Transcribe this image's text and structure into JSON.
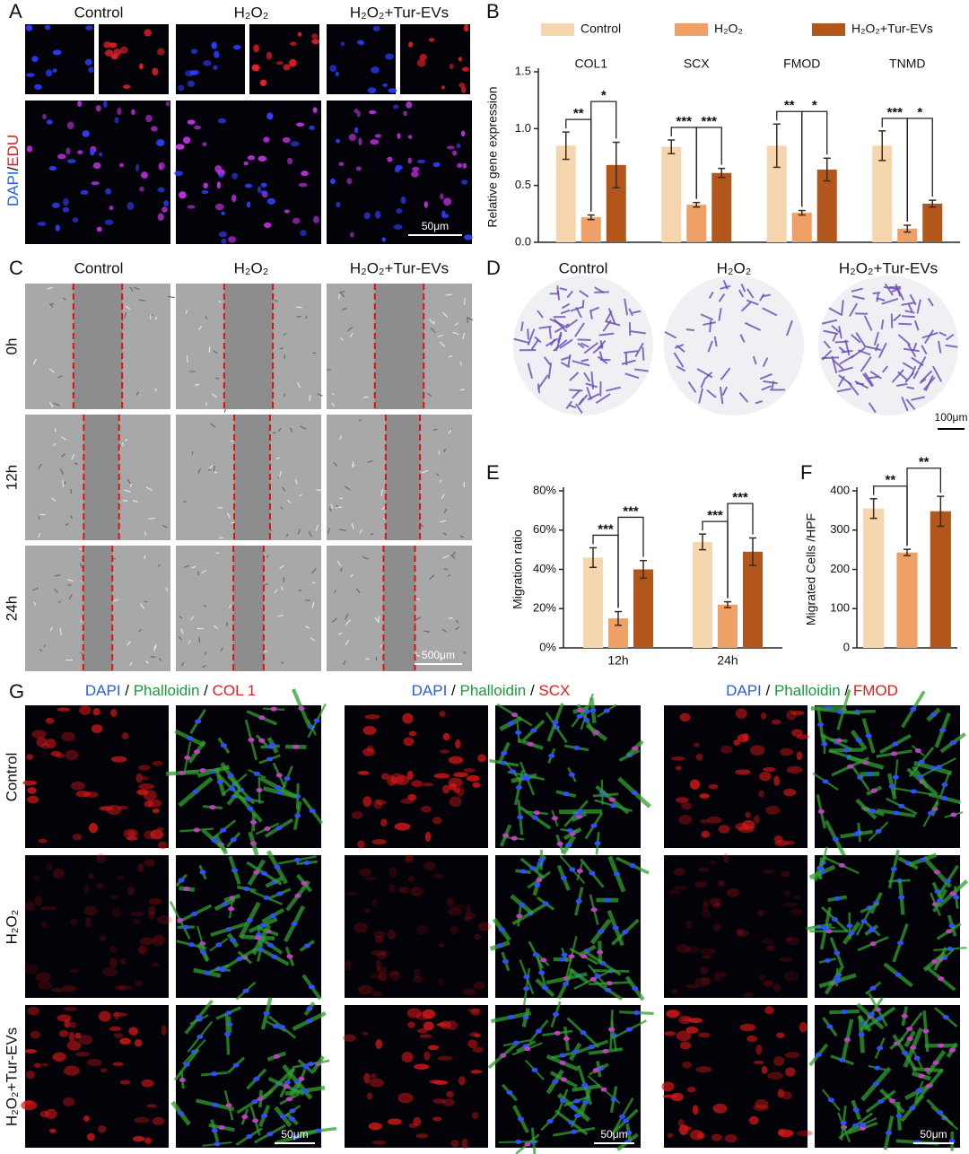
{
  "panel_letters": [
    "A",
    "B",
    "C",
    "D",
    "E",
    "F",
    "G"
  ],
  "panel_a": {
    "columns": [
      "Control",
      "H₂O₂",
      "H₂O₂+Tur-EVs"
    ],
    "stain": [
      "DAPI",
      "/",
      "EDU"
    ],
    "scale_bar": "50μm"
  },
  "panel_c": {
    "columns": [
      "Control",
      "H₂O₂",
      "H₂O₂+Tur-EVs"
    ],
    "rows": [
      "0h",
      "12h",
      "24h"
    ],
    "scale_bar": "500μm"
  },
  "panel_d": {
    "columns": [
      "Control",
      "H₂O₂",
      "H₂O₂+Tur-EVs"
    ],
    "scale_bar": "100μm"
  },
  "panel_g": {
    "headers": [
      [
        "DAPI",
        " / ",
        "Phalloidin",
        " / ",
        "COL 1"
      ],
      [
        "DAPI",
        " / ",
        "Phalloidin",
        " / ",
        "SCX"
      ],
      [
        "DAPI",
        " / ",
        "Phalloidin",
        " / ",
        "FMOD"
      ]
    ],
    "rows": [
      "Control",
      "H₂O₂",
      "H₂O₂+Tur-EVs"
    ],
    "scale_bars": [
      "50μm",
      "50μm",
      "50μm"
    ]
  },
  "chart_data": [
    {
      "type": "bar",
      "ylabel": "Relative gene expression",
      "categories": [
        "COL1",
        "SCX",
        "FMOD",
        "TNMD"
      ],
      "category_labels": "top",
      "legend": "top",
      "series": [
        {
          "name": "Control",
          "color": "#f6d6ae",
          "values": [
            0.85,
            0.84,
            0.85,
            0.85
          ],
          "errors": [
            0.12,
            0.06,
            0.19,
            0.13
          ]
        },
        {
          "name": "H₂O₂",
          "color": "#eea066",
          "values": [
            0.22,
            0.33,
            0.26,
            0.12
          ],
          "errors": [
            0.02,
            0.02,
            0.02,
            0.03
          ]
        },
        {
          "name": "H₂O₂+Tur-EVs",
          "color": "#b3561b",
          "values": [
            0.68,
            0.61,
            0.64,
            0.34
          ],
          "errors": [
            0.2,
            0.04,
            0.1,
            0.03
          ]
        }
      ],
      "significance": [
        [
          "**",
          "*"
        ],
        [
          "***",
          "***"
        ],
        [
          "**",
          "*"
        ],
        [
          "***",
          "*"
        ]
      ],
      "ylim": [
        0,
        1.5
      ],
      "yticks": [
        {
          "value": 0,
          "label": "0.0"
        },
        0.5,
        {
          "value": 1,
          "label": "1.0"
        },
        1.5
      ]
    },
    {
      "type": "bar",
      "ylabel": "Migration ratio",
      "categories": [
        "12h",
        "24h"
      ],
      "category_labels": "bottom",
      "series": [
        {
          "color": "#f6d6ae",
          "values": [
            46,
            54
          ],
          "errors": [
            5,
            4
          ]
        },
        {
          "color": "#eea066",
          "values": [
            15,
            22
          ],
          "errors": [
            3.5,
            1.5
          ]
        },
        {
          "color": "#b3561b",
          "values": [
            40,
            49
          ],
          "errors": [
            4.5,
            7
          ]
        }
      ],
      "significance": [
        [
          "***",
          "***"
        ],
        [
          "***",
          "***"
        ]
      ],
      "ylim": [
        0,
        80
      ],
      "yticks": [
        {
          "value": 0,
          "label": "0%"
        },
        {
          "value": 20,
          "label": "20%"
        },
        {
          "value": 40,
          "label": "40%"
        },
        {
          "value": 60,
          "label": "60%"
        },
        {
          "value": 80,
          "label": "80%"
        }
      ]
    },
    {
      "type": "bar",
      "ylabel": "Migrated Cells /HPF",
      "categories": [
        null,
        null,
        null
      ],
      "values": [
        355,
        243,
        348
      ],
      "errors": [
        25,
        8,
        38
      ],
      "colors": [
        "#f6d6ae",
        "#eea066",
        "#b3561b"
      ],
      "significance": [
        "**",
        "**"
      ],
      "ylim": [
        0,
        400
      ],
      "yticks": [
        0,
        100,
        200,
        300,
        400
      ]
    }
  ]
}
